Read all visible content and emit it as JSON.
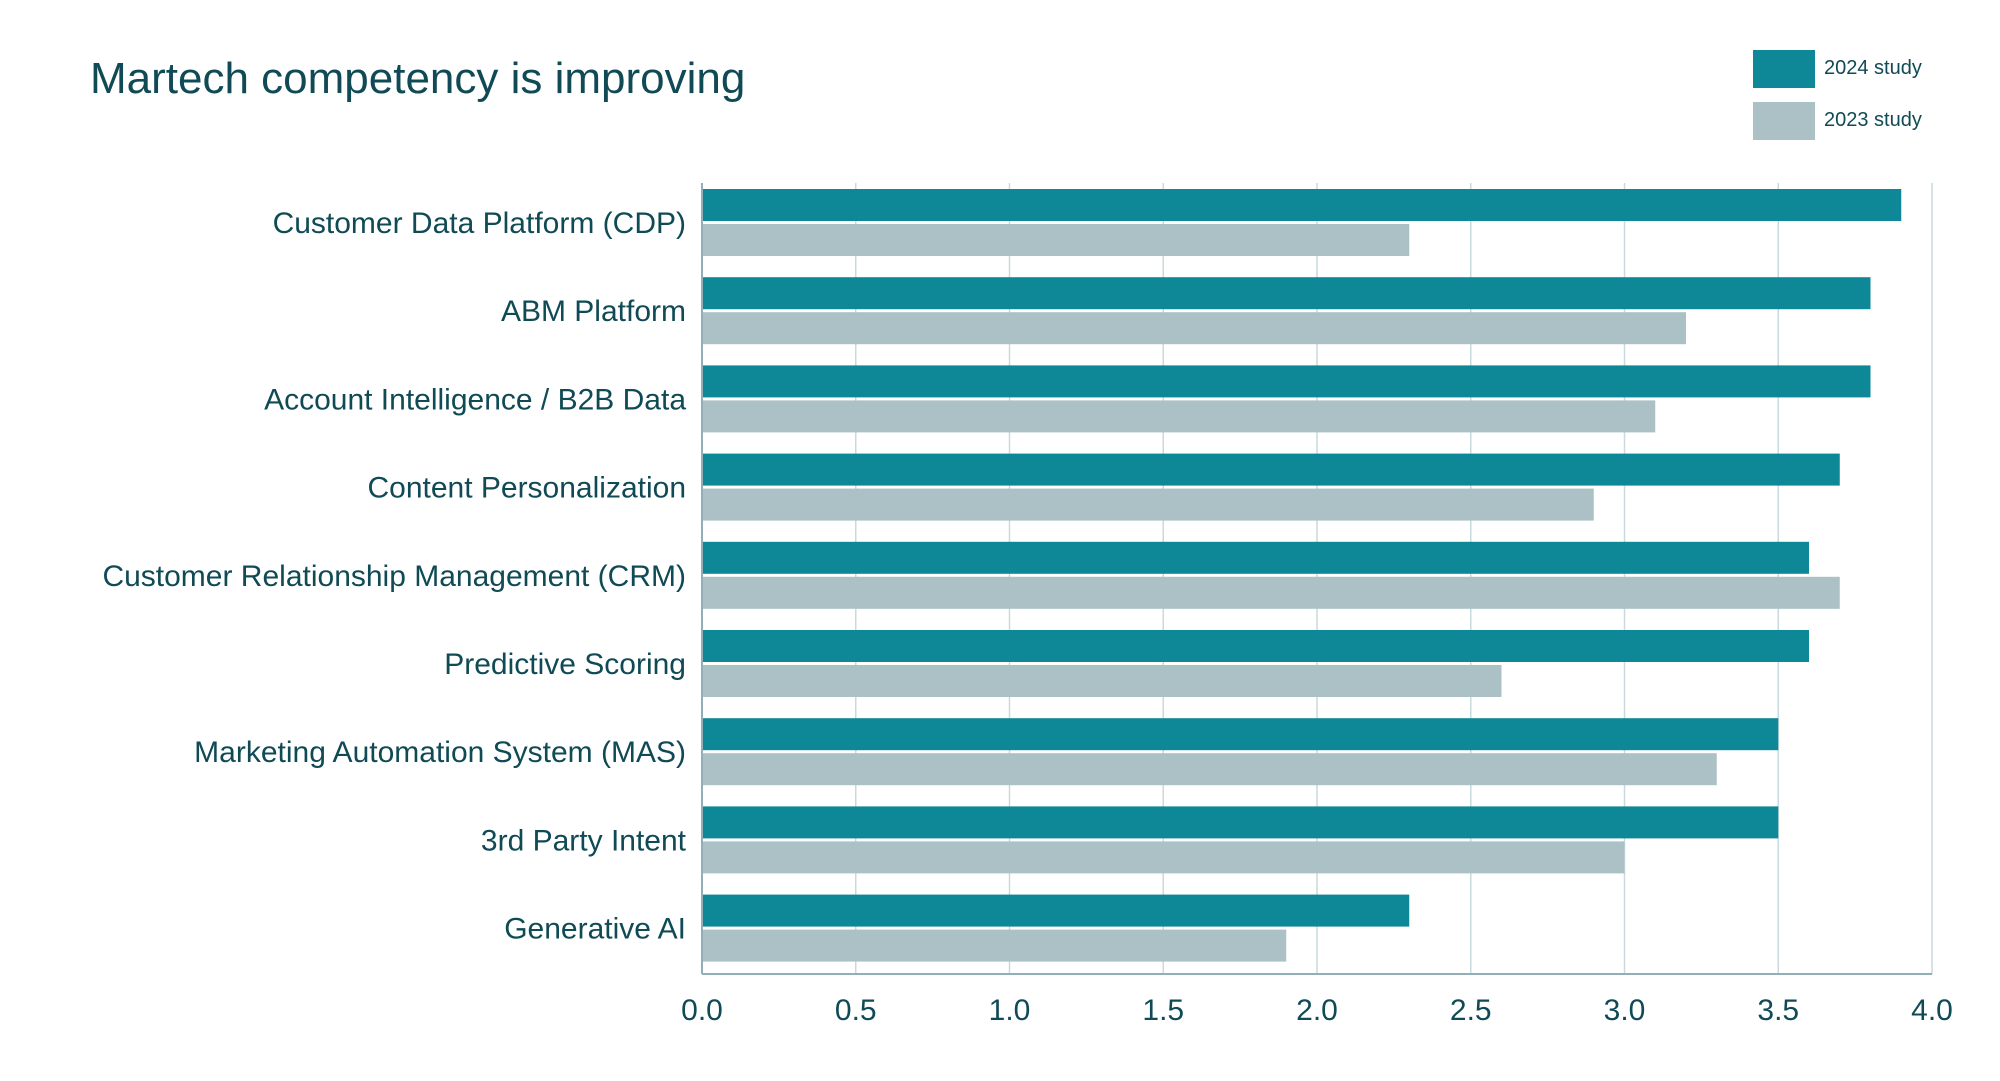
{
  "chart_data": {
    "type": "bar",
    "orientation": "horizontal",
    "title": "Martech competency is improving",
    "xlabel": "",
    "ylabel": "",
    "xlim": [
      0,
      4.0
    ],
    "xticks": [
      "0.0",
      "0.5",
      "1.0",
      "1.5",
      "2.0",
      "2.5",
      "3.0",
      "3.5",
      "4.0"
    ],
    "grid": "vertical",
    "legend_position": "top-right",
    "categories": [
      "Customer Data Platform (CDP)",
      "ABM Platform",
      "Account Intelligence / B2B Data",
      "Content Personalization",
      "Customer Relationship Management (CRM)",
      "Predictive Scoring",
      "Marketing Automation System (MAS)",
      "3rd Party Intent",
      "Generative AI"
    ],
    "series": [
      {
        "name": "2024 study",
        "color": "#0e8796",
        "values": [
          3.9,
          3.8,
          3.8,
          3.7,
          3.6,
          3.6,
          3.5,
          3.5,
          2.3
        ]
      },
      {
        "name": "2023 study",
        "color": "#abc1c5",
        "values": [
          2.3,
          3.2,
          3.1,
          2.9,
          3.7,
          2.6,
          3.3,
          3.0,
          1.9
        ]
      }
    ]
  }
}
